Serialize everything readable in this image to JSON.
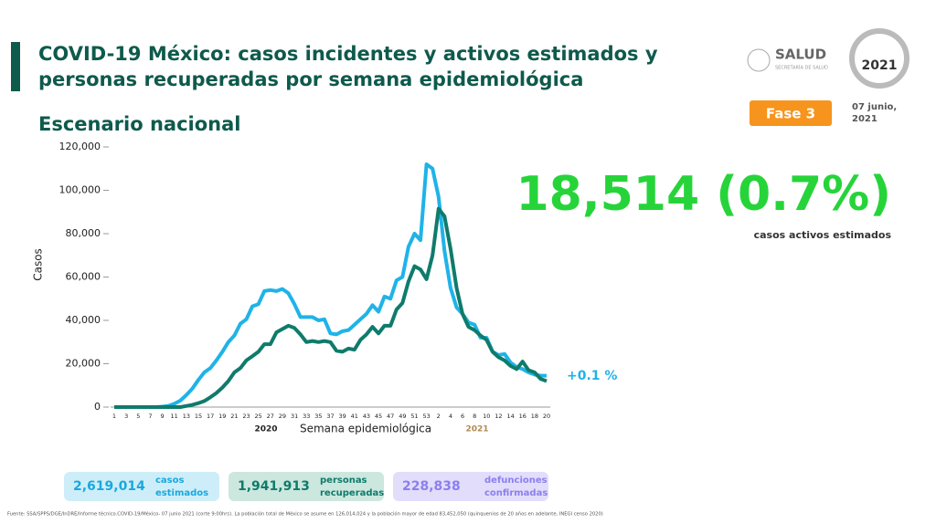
{
  "header": {
    "title": [
      "COVID-19 México: casos incidentes y activos estimados y",
      "personas recuperadas por semana epidemiológica"
    ],
    "subtitle": "Escenario nacional",
    "agency": "SALUD",
    "agency_sub": "SECRETARÍA DE SALUD",
    "logo_year": "2021",
    "phase": "Fase 3",
    "date": [
      "07 junio,",
      "2021"
    ]
  },
  "chart_data": {
    "type": "line",
    "y_label": "Casos",
    "x_label": "Semana epidemiológica",
    "annotations": [
      "2020",
      "2021"
    ],
    "categories": [
      "1",
      null,
      "3",
      null,
      "5",
      null,
      "7",
      null,
      "9",
      null,
      "11",
      null,
      "13",
      null,
      "15",
      null,
      "17",
      null,
      "19",
      null,
      "21",
      null,
      "23",
      null,
      "25",
      null,
      "27",
      null,
      "29",
      null,
      "31",
      null,
      "33",
      null,
      "35",
      null,
      "37",
      null,
      "39",
      null,
      "41",
      null,
      "43",
      null,
      "45",
      null,
      "47",
      null,
      "49",
      null,
      "51",
      null,
      "53",
      null,
      "2",
      null,
      "4",
      null,
      "6",
      null,
      "8",
      null,
      "10",
      null,
      "12",
      null,
      "14",
      null,
      "16",
      null,
      "18",
      null,
      "20"
    ],
    "series": [
      {
        "color": "#1fb3e8",
        "values": [
          0,
          0,
          0,
          0,
          0,
          0,
          0,
          0,
          200,
          500,
          1500,
          3000,
          5500,
          8500,
          12500,
          16000,
          18000,
          21500,
          25500,
          30000,
          33000,
          38500,
          40500,
          46500,
          47500,
          53500,
          54000,
          53500,
          54500,
          52500,
          47500,
          41500,
          41500,
          41500,
          40000,
          40500,
          34000,
          33500,
          35000,
          35500,
          38000,
          40500,
          43000,
          47000,
          44000,
          51000,
          50000,
          58500,
          60000,
          74000,
          80000,
          77000,
          112000,
          110000,
          97000,
          72000,
          55000,
          46000,
          43000,
          39000,
          38000,
          32000,
          32000,
          25500,
          24000,
          24500,
          20500,
          18500,
          17500,
          16000,
          15000,
          14500,
          14500
        ]
      },
      {
        "color": "#0f7b6b",
        "values": [
          0,
          0,
          0,
          0,
          0,
          0,
          0,
          0,
          0,
          0,
          0,
          0,
          500,
          1000,
          1800,
          2800,
          4500,
          6500,
          9000,
          12000,
          16000,
          18000,
          21500,
          23500,
          25500,
          29000,
          29000,
          34500,
          36000,
          37500,
          36500,
          33500,
          30000,
          30500,
          30000,
          30500,
          30000,
          26000,
          25500,
          27000,
          26500,
          31000,
          33500,
          37000,
          34000,
          37500,
          37500,
          45000,
          48000,
          58000,
          65000,
          63500,
          59000,
          70000,
          91500,
          88000,
          73000,
          55000,
          43000,
          37000,
          35500,
          33000,
          31000,
          25500,
          23000,
          21500,
          19000,
          17500,
          21000,
          17000,
          16000,
          13000,
          12000
        ]
      }
    ],
    "ylim": [
      0,
      120000
    ],
    "yticks": [
      0,
      {
        "value": 20000,
        "label": "20,000"
      },
      {
        "value": 40000,
        "label": "40,000"
      },
      {
        "value": 60000,
        "label": "60,000"
      },
      {
        "value": 80000,
        "label": "80,000"
      },
      {
        "value": 100000,
        "label": "100,000"
      },
      {
        "value": 120000,
        "label": "120,000"
      }
    ]
  },
  "highlight": {
    "value": "18,514 (0.7%)",
    "label": "casos activos estimados",
    "change": "+0.1 %"
  },
  "summary": [
    {
      "value": "2,619,014",
      "label": [
        "casos",
        "estimados"
      ]
    },
    {
      "value": "1,941,913",
      "label": [
        "personas",
        "recuperadas"
      ]
    },
    {
      "value": "228,838",
      "label": [
        "defunciones",
        "confirmadas"
      ]
    }
  ],
  "footnote": "Fuente: SSA/SPPS/DGE/InDRE/Informe técnico.COVID-19/México- 07 junio 2021 (corte 9:00hrs). La población total de México se asume en 126,014,024 y la población mayor de edad 83,452,050 (quinquenios de 20 años en adelante, INEGI censo 2020)"
}
